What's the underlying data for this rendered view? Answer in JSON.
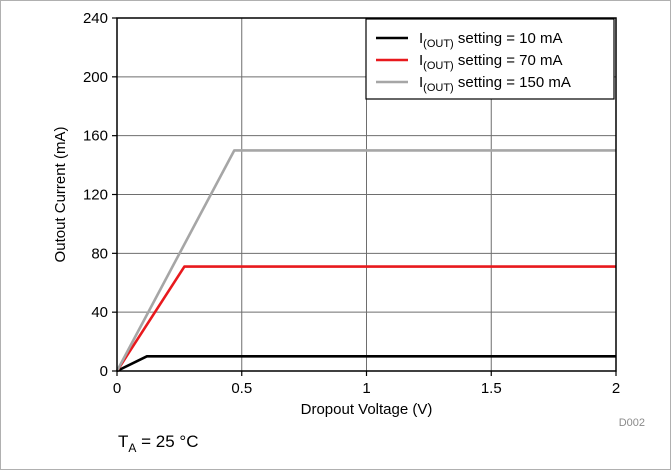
{
  "chart_data": {
    "type": "line",
    "xlabel": "Dropout Voltage (V)",
    "ylabel": "Outout Current (mA)",
    "xlim": [
      0,
      2
    ],
    "ylim": [
      0,
      240
    ],
    "x_ticks": [
      "0",
      "0.5",
      "1",
      "1.5",
      "2"
    ],
    "x_tick_values": [
      0,
      0.5,
      1,
      1.5,
      2
    ],
    "y_ticks": [
      "0",
      "40",
      "80",
      "120",
      "160",
      "200",
      "240"
    ],
    "y_tick_values": [
      0,
      40,
      80,
      120,
      160,
      200,
      240
    ],
    "grid": true,
    "legend_position": "top-right",
    "series": [
      {
        "name_main": "I",
        "name_sub": "(OUT)",
        "name_rest": " setting = 10 mA",
        "color": "#000000",
        "x": [
          0,
          0.12,
          2.0
        ],
        "y": [
          0,
          10,
          10
        ]
      },
      {
        "name_main": "I",
        "name_sub": "(OUT)",
        "name_rest": " setting = 70 mA",
        "color": "#e8191d",
        "x": [
          0,
          0.27,
          2.0
        ],
        "y": [
          0,
          71,
          71
        ]
      },
      {
        "name_main": "I",
        "name_sub": "(OUT)",
        "name_rest": " setting = 150 mA",
        "color": "#a6a6a6",
        "x": [
          0,
          0.47,
          2.0
        ],
        "y": [
          0,
          150,
          150
        ]
      }
    ],
    "annotation": {
      "main": "T",
      "sub": "A",
      "rest": " = 25 °C"
    },
    "figure_id": "D002"
  }
}
